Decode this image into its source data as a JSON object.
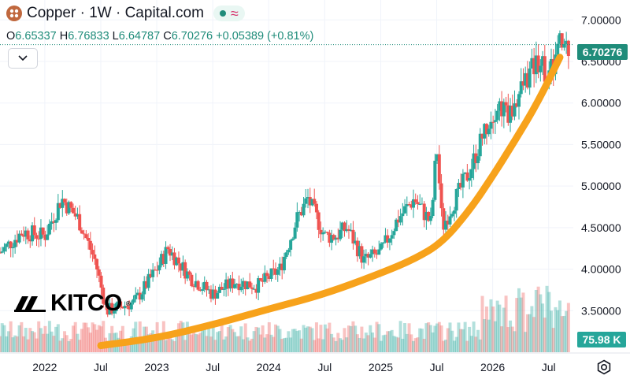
{
  "header": {
    "title": "Copper · 1W · Capital.com",
    "ohlc": {
      "o_label": "O",
      "o_value": "6.65337",
      "h_label": "H",
      "h_value": "6.76833",
      "l_label": "L",
      "l_value": "6.64787",
      "c_label": "C",
      "c_value": "6.70276",
      "change": "+0.05389 (+0.81%)"
    }
  },
  "price_tag": "6.70276",
  "volume_tag": "75.98 K",
  "watermark": {
    "text": "KITCO",
    "reg": "®"
  },
  "icons": {
    "settings": "gear-icon",
    "collapse": "chevron-down-icon",
    "logo": "copper-logo-icon"
  },
  "colors": {
    "up": "#26a69a",
    "down": "#ef5350",
    "trend": "#f7a21b",
    "accent": "#1f8c7a"
  },
  "chart_data": {
    "type": "candlestick",
    "y_axis": {
      "ticks": [
        "7.00000",
        "6.50000",
        "6.00000",
        "5.50000",
        "5.00000",
        "4.50000",
        "4.00000",
        "3.50000"
      ],
      "values": [
        7.0,
        6.5,
        6.0,
        5.5,
        5.0,
        4.5,
        4.0,
        3.5
      ],
      "range": [
        3.0,
        7.05
      ]
    },
    "x_axis": {
      "labels": [
        "2022",
        "Jul",
        "2023",
        "Jul",
        "2024",
        "Jul",
        "2025",
        "Jul",
        "2026",
        "Jul"
      ],
      "label_positions": [
        0.0,
        0.5,
        1.0,
        1.5,
        2.0,
        2.5,
        3.0,
        3.5,
        4.0,
        4.5
      ],
      "range": [
        -0.4,
        4.72
      ]
    },
    "series": [
      {
        "kind": "close_anchors",
        "x": [
          -0.4,
          -0.2,
          0.0,
          0.15,
          0.3,
          0.45,
          0.55,
          0.8,
          1.0,
          1.1,
          1.3,
          1.5,
          1.7,
          1.9,
          2.1,
          2.25,
          2.35,
          2.5,
          2.6,
          2.7,
          2.85,
          3.0,
          3.15,
          3.3,
          3.45,
          3.5,
          3.55,
          3.65,
          3.8,
          3.95,
          4.05,
          4.15,
          4.3,
          4.42,
          4.5,
          4.6
        ],
        "y": [
          4.2,
          4.45,
          4.4,
          4.85,
          4.6,
          4.1,
          3.5,
          3.6,
          4.0,
          4.25,
          3.9,
          3.7,
          3.85,
          3.8,
          4.0,
          4.6,
          4.85,
          4.4,
          4.4,
          4.5,
          4.1,
          4.2,
          4.6,
          4.85,
          4.55,
          5.5,
          4.5,
          4.8,
          5.2,
          5.75,
          6.0,
          5.85,
          6.3,
          6.55,
          6.3,
          6.70276
        ]
      }
    ],
    "trend_line": {
      "x": [
        0.5,
        1.0,
        1.5,
        2.0,
        2.5,
        3.0,
        3.3,
        3.55,
        3.8,
        4.0,
        4.2,
        4.4,
        4.6
      ],
      "y": [
        3.08,
        3.17,
        3.33,
        3.52,
        3.7,
        3.95,
        4.12,
        4.32,
        4.72,
        5.12,
        5.55,
        6.0,
        6.55
      ]
    },
    "current_price": 6.70276
  }
}
